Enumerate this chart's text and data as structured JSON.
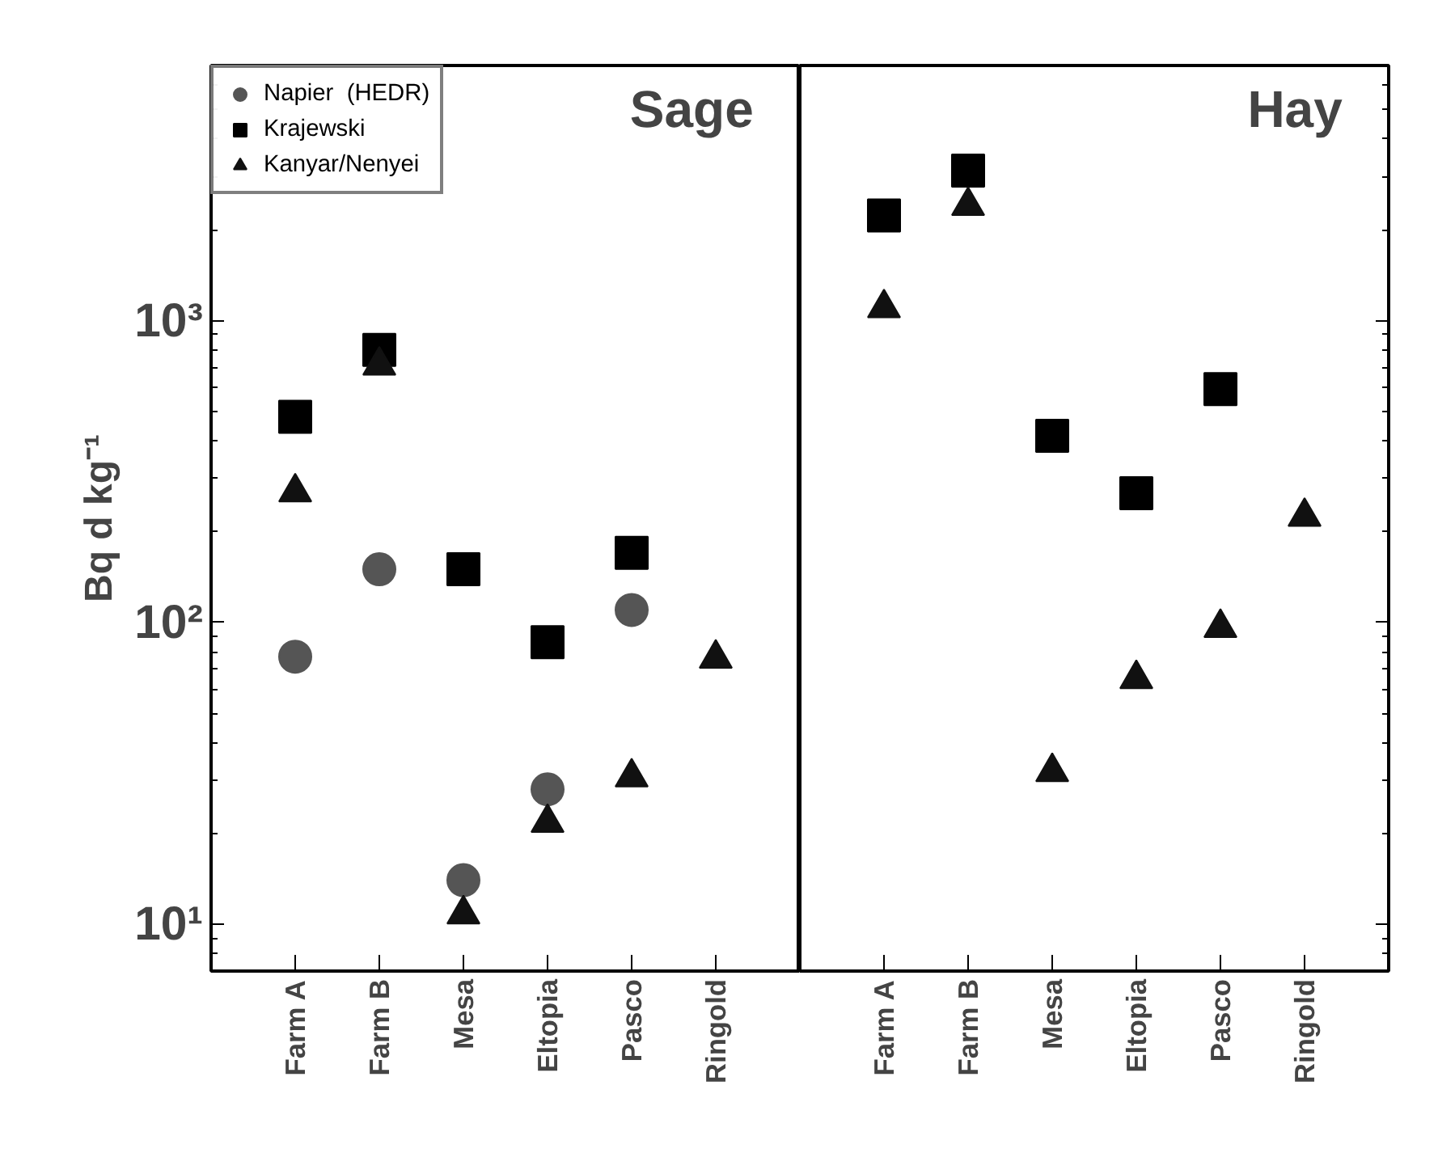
{
  "chart_data": [
    {
      "type": "scatter",
      "title": "Sage",
      "ylabel": "Bq d kg⁻¹",
      "log": true,
      "legend": "top left",
      "grid": false,
      "categories": [
        "Farm A",
        "Farm B",
        "Mesa",
        "Eltopia",
        "Pasco",
        "Ringold"
      ],
      "ylim": [
        7,
        7000
      ],
      "yticks": [
        {
          "value": 10,
          "label": "10¹"
        },
        {
          "value": 100,
          "label": "10²"
        },
        {
          "value": 1000,
          "label": "10³"
        }
      ],
      "series": [
        {
          "name": "Napier  (HEDR)",
          "color": "#555555",
          "marker": "circle",
          "values": [
            77,
            150,
            14,
            28,
            110,
            null
          ]
        },
        {
          "name": "Krajewski",
          "color": "#000000",
          "marker": "square",
          "values": [
            480,
            800,
            150,
            86,
            170,
            null
          ]
        },
        {
          "name": "Kanyar/Nenyei",
          "color": "#111111",
          "marker": "triangle",
          "values": [
            270,
            710,
            10.8,
            21.7,
            30.7,
            76
          ]
        }
      ]
    },
    {
      "type": "scatter",
      "title": "Hay",
      "log": true,
      "legend": false,
      "grid": false,
      "tick_labels": "x",
      "categories": [
        "Farm A",
        "Farm B",
        "Mesa",
        "Eltopia",
        "Pasco",
        "Ringold"
      ],
      "ylim": [
        7,
        7000
      ],
      "yticks": [
        {
          "value": 10,
          "label": null
        },
        {
          "value": 100,
          "label": null
        },
        {
          "value": 1000,
          "label": null
        }
      ],
      "series": [
        {
          "color": "#000000",
          "marker": "square",
          "values": [
            2230,
            3140,
            415,
            268,
            593,
            null
          ]
        },
        {
          "color": "#111111",
          "marker": "triangle",
          "values": [
            1100,
            2400,
            32,
            65,
            96,
            224
          ]
        }
      ]
    }
  ]
}
